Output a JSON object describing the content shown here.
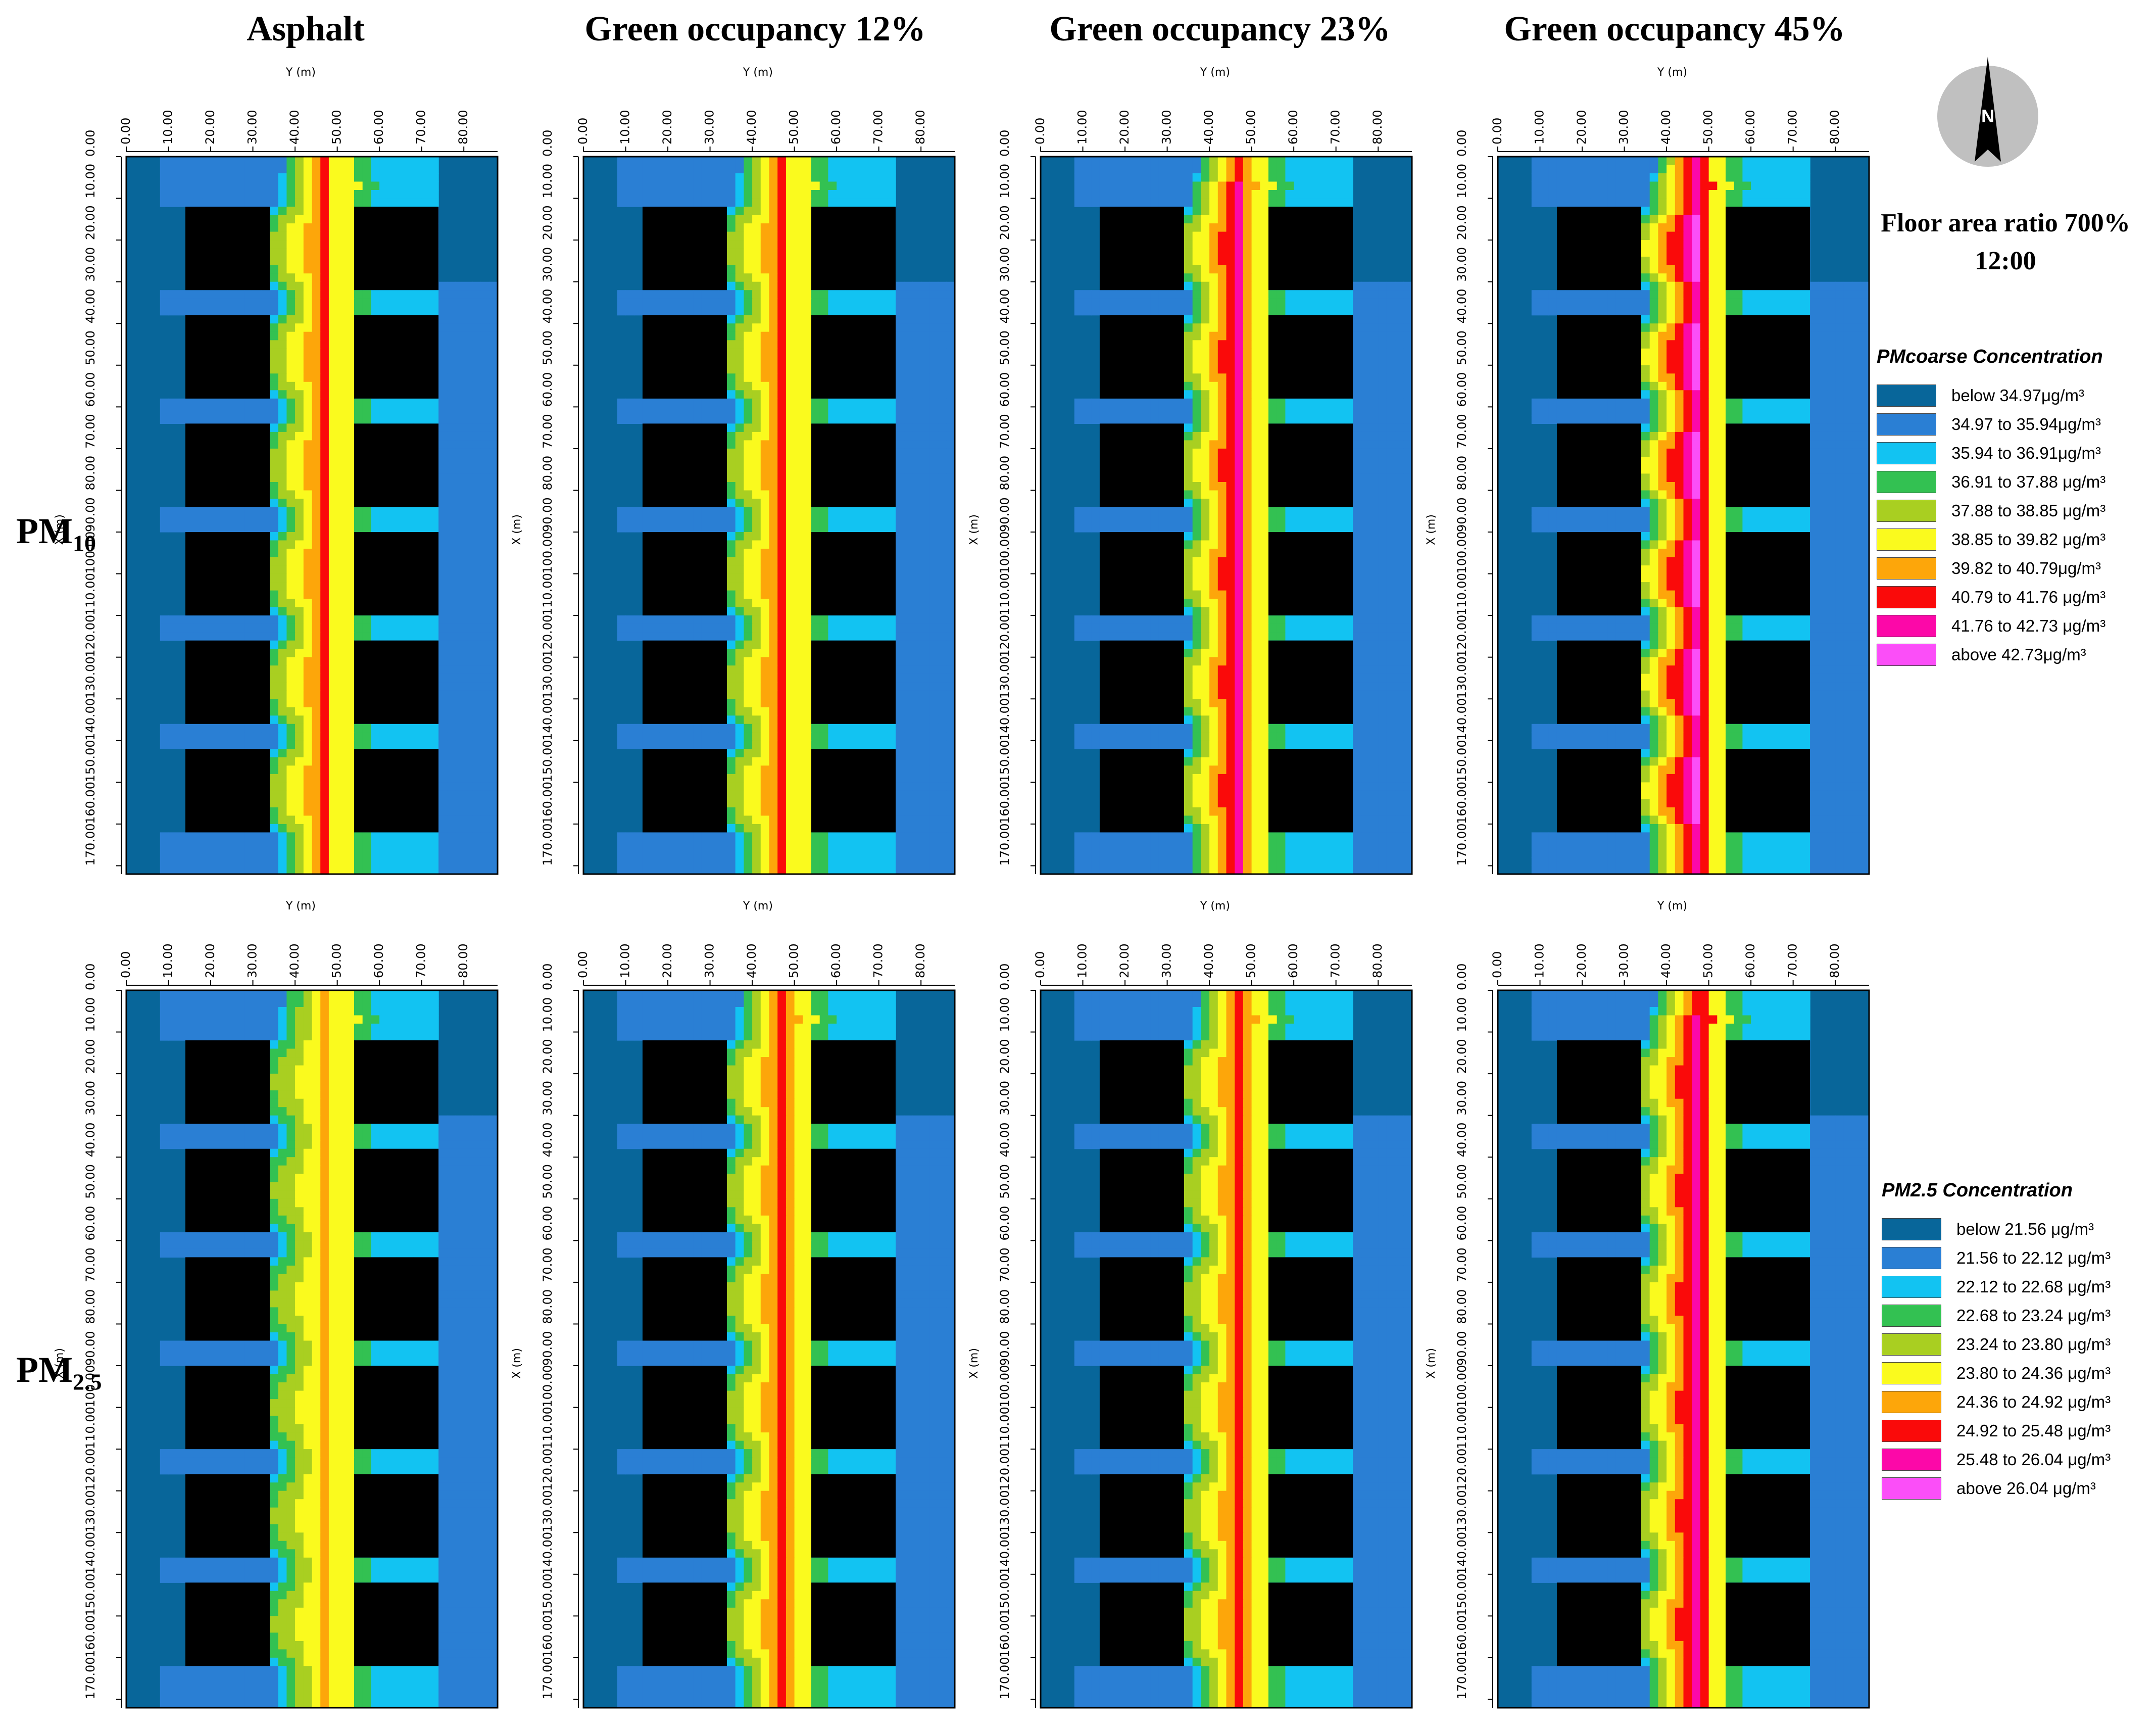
{
  "columns": [
    "Asphalt",
    "Green occupancy 12%",
    "Green occupancy 23%",
    "Green occupancy 45%"
  ],
  "rows": [
    {
      "base": "PM",
      "sub": "10"
    },
    {
      "base": "PM",
      "sub": "2.5"
    }
  ],
  "floor_area_ratio": "Floor area ratio 700%",
  "time": "12:00",
  "compass": {
    "label": "N",
    "icon": "north-arrow-icon"
  },
  "axes": {
    "x_title": "Y (m)",
    "y_title": "X (m)"
  },
  "colors": [
    "#08669a",
    "#2a7fd4",
    "#12c3f2",
    "#33c152",
    "#a9cf21",
    "#fafa1e",
    "#fda60a",
    "#fa0a0a",
    "#fc08a8",
    "#fb4ef8"
  ],
  "legends": [
    {
      "title": "PMcoarse Concentration",
      "labels": [
        "below 34.97μg/m³",
        "34.97 to 35.94μg/m³",
        "35.94 to 36.91μg/m³",
        "36.91 to 37.88 μg/m³",
        "37.88 to 38.85 μg/m³",
        "38.85 to 39.82 μg/m³",
        "39.82 to 40.79μg/m³",
        "40.79 to 41.76 μg/m³",
        "41.76 to 42.73 μg/m³",
        "above 42.73μg/m³"
      ]
    },
    {
      "title": "PM2.5 Concentration",
      "labels": [
        "below 21.56 μg/m³",
        "21.56 to 22.12 μg/m³",
        "22.12 to 22.68 μg/m³",
        "22.68 to 23.24 μg/m³",
        "23.24 to 23.80 μg/m³",
        "23.80 to 24.36 μg/m³",
        "24.36 to 24.92 μg/m³",
        "24.92 to 25.48 μg/m³",
        "25.48 to 26.04 μg/m³",
        "above 26.04 μg/m³"
      ]
    }
  ],
  "chart_data": {
    "type": "heatmap",
    "x_axis": {
      "label": "Y (m)",
      "range": [
        0,
        88
      ],
      "ticks": [
        "0.00",
        "10.00",
        "20.00",
        "30.00",
        "40.00",
        "50.00",
        "60.00",
        "70.00",
        "80.00"
      ]
    },
    "y_axis": {
      "label": "X (m)",
      "range": [
        0,
        172
      ],
      "ticks": [
        "0.00",
        "10.00",
        "20.00",
        "30.00",
        "40.00",
        "50.00",
        "60.00",
        "70.00",
        "80.00",
        "90.00",
        "100.00",
        "110.00",
        "120.00",
        "130.00",
        "140.00",
        "150.00",
        "160.00",
        "170.00"
      ]
    },
    "buildings_x_ranges_m": [
      [
        14,
        34
      ],
      [
        54,
        74
      ]
    ],
    "buildings_y_ranges_m": [
      [
        12,
        32
      ],
      [
        38,
        58
      ],
      [
        64,
        84
      ],
      [
        90,
        110
      ],
      [
        116,
        136
      ],
      [
        142,
        162
      ]
    ],
    "street_center_y_m": 48,
    "panels": [
      {
        "row": 0,
        "col": 0,
        "pollutant": "PMcoarse",
        "peak_class": 7
      },
      {
        "row": 0,
        "col": 1,
        "pollutant": "PMcoarse",
        "peak_class": 7
      },
      {
        "row": 0,
        "col": 2,
        "pollutant": "PMcoarse",
        "peak_class": 8
      },
      {
        "row": 0,
        "col": 3,
        "pollutant": "PMcoarse",
        "peak_class": 9
      },
      {
        "row": 1,
        "col": 0,
        "pollutant": "PM2.5",
        "peak_class": 6
      },
      {
        "row": 1,
        "col": 1,
        "pollutant": "PM2.5",
        "peak_class": 7
      },
      {
        "row": 1,
        "col": 2,
        "pollutant": "PM2.5",
        "peak_class": 7
      },
      {
        "row": 1,
        "col": 3,
        "pollutant": "PM2.5",
        "peak_class": 8
      }
    ]
  }
}
